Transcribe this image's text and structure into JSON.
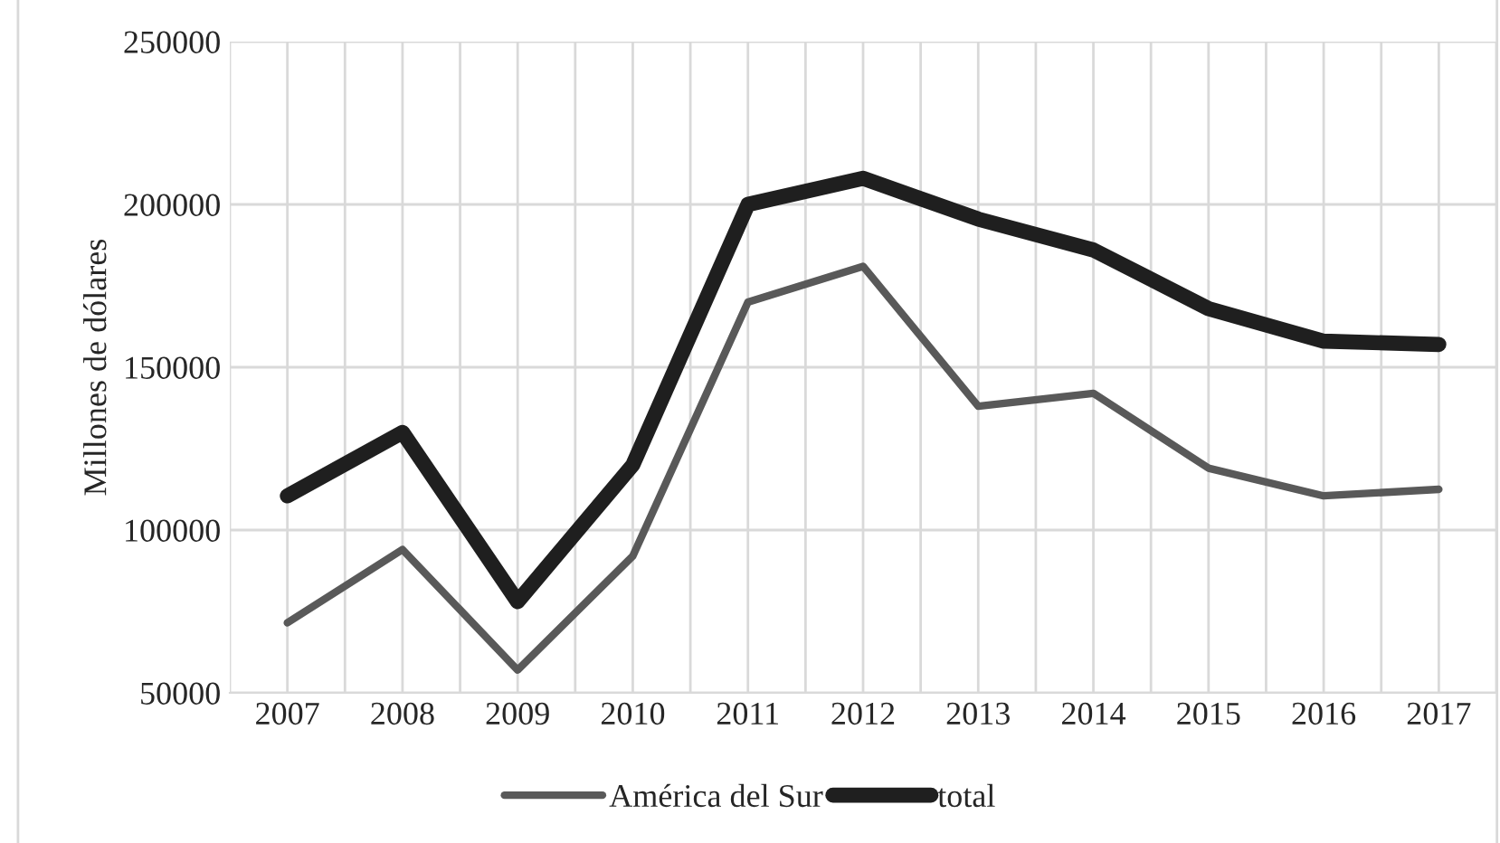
{
  "chart_data": {
    "type": "line",
    "ylabel": "Millones de dólares",
    "categories": [
      "2007",
      "2008",
      "2009",
      "2010",
      "2011",
      "2012",
      "2013",
      "2014",
      "2015",
      "2016",
      "2017"
    ],
    "series": [
      {
        "name": "América del Sur",
        "color": "#595959",
        "values": [
          71500,
          94000,
          57000,
          92000,
          170000,
          181000,
          138000,
          142000,
          119000,
          110500,
          112500
        ]
      },
      {
        "name": "total",
        "color": "#1f1f1f",
        "values": [
          110500,
          130000,
          78000,
          120000,
          200000,
          208000,
          195500,
          186000,
          168000,
          158000,
          157000
        ]
      }
    ],
    "ylim": [
      50000,
      250000
    ],
    "yticks": [
      50000,
      100000,
      150000,
      200000,
      250000
    ],
    "grid": true,
    "legend": "bottom",
    "marker": "none",
    "line_style": "solid"
  }
}
